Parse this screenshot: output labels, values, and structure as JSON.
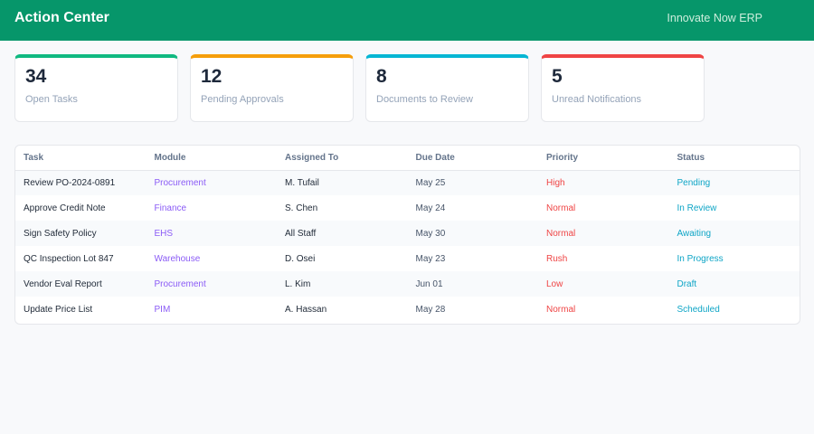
{
  "header": {
    "title": "Action Center",
    "brand": "Innovate Now ERP"
  },
  "cards": [
    {
      "value": "34",
      "label": "Open Tasks",
      "accent": "#10b981"
    },
    {
      "value": "12",
      "label": "Pending Approvals",
      "accent": "#f59e0b"
    },
    {
      "value": "8",
      "label": "Documents to Review",
      "accent": "#06b6d4"
    },
    {
      "value": "5",
      "label": "Unread Notifications",
      "accent": "#ef4444"
    }
  ],
  "table": {
    "columns": [
      "Task",
      "Module",
      "Assigned To",
      "Due Date",
      "Priority",
      "Status"
    ],
    "rows": [
      {
        "task": "Review PO-2024-0891",
        "module": "Procurement",
        "assigned": "M. Tufail",
        "due": "May 25",
        "priority": "High",
        "priority_color": "#ef4444",
        "status": "Pending"
      },
      {
        "task": "Approve Credit Note",
        "module": "Finance",
        "assigned": "S. Chen",
        "due": "May 24",
        "priority": "Normal",
        "priority_color": "#ef4444",
        "status": "In Review"
      },
      {
        "task": "Sign Safety Policy",
        "module": "EHS",
        "assigned": "All Staff",
        "due": "May 30",
        "priority": "Normal",
        "priority_color": "#ef4444",
        "status": "Awaiting"
      },
      {
        "task": "QC Inspection Lot 847",
        "module": "Warehouse",
        "assigned": "D. Osei",
        "due": "May 23",
        "priority": "Rush",
        "priority_color": "#ef4444",
        "status": "In Progress"
      },
      {
        "task": "Vendor Eval Report",
        "module": "Procurement",
        "assigned": "L. Kim",
        "due": "Jun 01",
        "priority": "Low",
        "priority_color": "#ef4444",
        "status": "Draft"
      },
      {
        "task": "Update Price List",
        "module": "PIM",
        "assigned": "A. Hassan",
        "due": "May 28",
        "priority": "Normal",
        "priority_color": "#ef4444",
        "status": "Scheduled"
      }
    ]
  }
}
